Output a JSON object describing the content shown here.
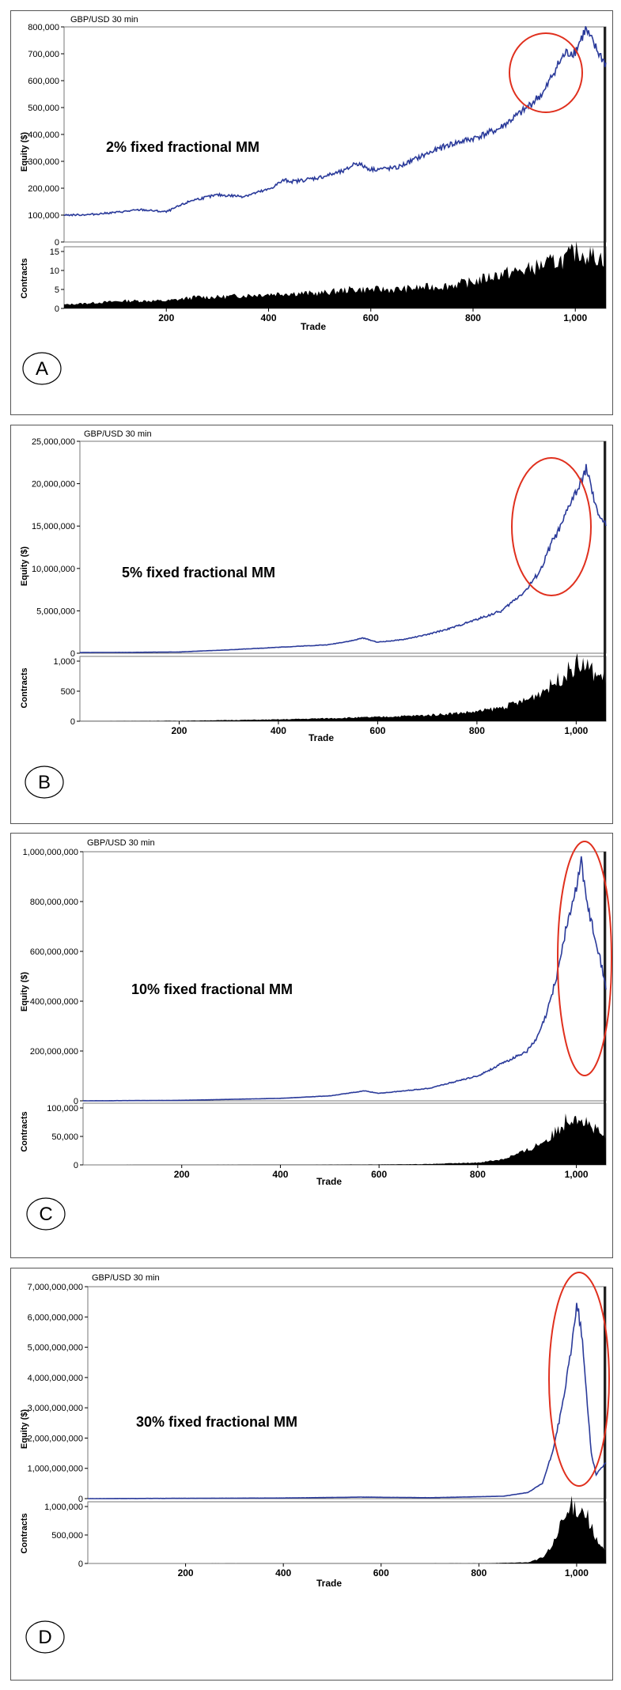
{
  "chart_data": [
    {
      "type": "line",
      "panel_label": "A",
      "title": "GBP/USD 30 min",
      "annotation": "2% fixed fractional MM",
      "xlabel": "Trade",
      "xticks": [
        "200",
        "400",
        "600",
        "800",
        "1,000"
      ],
      "xlim": [
        0,
        1060
      ],
      "equity": {
        "ylabel": "Equity ($)",
        "ylim": [
          0,
          800000
        ],
        "yticks": [
          "0",
          "100,000",
          "200,000",
          "300,000",
          "400,000",
          "500,000",
          "600,000",
          "700,000",
          "800,000"
        ],
        "x": [
          0,
          50,
          100,
          150,
          200,
          250,
          300,
          350,
          400,
          430,
          450,
          500,
          550,
          570,
          600,
          650,
          700,
          750,
          800,
          850,
          900,
          940,
          960,
          980,
          1000,
          1020,
          1040,
          1060
        ],
        "values": [
          100000,
          102000,
          110000,
          120000,
          112000,
          155000,
          175000,
          170000,
          195000,
          230000,
          225000,
          240000,
          265000,
          295000,
          270000,
          275000,
          320000,
          360000,
          385000,
          420000,
          490000,
          560000,
          640000,
          700000,
          710000,
          790000,
          720000,
          660000
        ]
      },
      "contracts": {
        "ylabel": "Contracts",
        "ylim": [
          0,
          15
        ],
        "yticks": [
          "0",
          "5",
          "10",
          "15"
        ],
        "x": [
          0,
          120,
          200,
          260,
          300,
          430,
          500,
          560,
          650,
          750,
          800,
          850,
          900,
          950,
          980,
          1000,
          1030,
          1060
        ],
        "values": [
          1,
          2,
          2,
          3,
          3,
          4,
          4,
          5,
          5,
          6,
          7,
          9,
          10,
          12,
          13,
          15,
          14,
          13
        ]
      }
    },
    {
      "type": "line",
      "panel_label": "B",
      "title": "GBP/USD 30 min",
      "annotation": "5% fixed fractional MM",
      "xlabel": "Trade",
      "xticks": [
        "200",
        "400",
        "600",
        "800",
        "1,000"
      ],
      "xlim": [
        0,
        1060
      ],
      "equity": {
        "ylabel": "Equity ($)",
        "ylim": [
          0,
          25000000
        ],
        "yticks": [
          "0",
          "5,000,000",
          "10,000,000",
          "15,000,000",
          "20,000,000",
          "25,000,000"
        ],
        "x": [
          0,
          100,
          200,
          300,
          400,
          500,
          550,
          570,
          600,
          650,
          700,
          750,
          800,
          850,
          900,
          930,
          950,
          970,
          990,
          1010,
          1020,
          1040,
          1060
        ],
        "values": [
          80000,
          100000,
          150000,
          400000,
          700000,
          1000000,
          1500000,
          1800000,
          1300000,
          1600000,
          2200000,
          3000000,
          4000000,
          5000000,
          7500000,
          10000000,
          13000000,
          15000000,
          18000000,
          20000000,
          22000000,
          17000000,
          15000000
        ]
      },
      "contracts": {
        "ylabel": "Contracts",
        "ylim": [
          0,
          1000
        ],
        "yticks": [
          "0",
          "500",
          "1,000"
        ],
        "x": [
          0,
          200,
          400,
          600,
          700,
          800,
          850,
          900,
          950,
          980,
          1000,
          1020,
          1040,
          1060
        ],
        "values": [
          3,
          8,
          30,
          70,
          100,
          160,
          230,
          350,
          600,
          800,
          950,
          920,
          780,
          700
        ]
      }
    },
    {
      "type": "line",
      "panel_label": "C",
      "title": "GBP/USD 30 min",
      "annotation": "10% fixed fractional MM",
      "xlabel": "Trade",
      "xticks": [
        "200",
        "400",
        "600",
        "800",
        "1,000"
      ],
      "xlim": [
        0,
        1060
      ],
      "equity": {
        "ylabel": "Equity ($)",
        "ylim": [
          0,
          1000000000
        ],
        "yticks": [
          "0",
          "200,000,000",
          "400,000,000",
          "600,000,000",
          "800,000,000",
          "1,000,000,000"
        ],
        "x": [
          0,
          200,
          400,
          500,
          570,
          600,
          700,
          800,
          850,
          900,
          920,
          940,
          960,
          980,
          1000,
          1010,
          1020,
          1040,
          1060
        ],
        "values": [
          0,
          2000000,
          10000000,
          20000000,
          40000000,
          30000000,
          50000000,
          100000000,
          150000000,
          200000000,
          250000000,
          350000000,
          500000000,
          700000000,
          850000000,
          980000000,
          800000000,
          650000000,
          450000000
        ]
      },
      "contracts": {
        "ylabel": "Contracts",
        "ylim": [
          0,
          100000
        ],
        "yticks": [
          "0",
          "50,000",
          "100,000"
        ],
        "x": [
          0,
          400,
          600,
          700,
          800,
          850,
          900,
          950,
          980,
          1000,
          1020,
          1040,
          1060
        ],
        "values": [
          0,
          300,
          800,
          1500,
          4000,
          10000,
          25000,
          50000,
          80000,
          90000,
          75000,
          60000,
          45000
        ]
      }
    },
    {
      "type": "line",
      "panel_label": "D",
      "title": "GBP/USD 30 min",
      "annotation": "30% fixed fractional MM",
      "xlabel": "Trade",
      "xticks": [
        "200",
        "400",
        "600",
        "800",
        "1,000"
      ],
      "xlim": [
        0,
        1060
      ],
      "equity": {
        "ylabel": "Equity ($)",
        "ylim": [
          0,
          7000000000
        ],
        "yticks": [
          "0",
          "1,000,000,000",
          "2,000,000,000",
          "3,000,000,000",
          "4,000,000,000",
          "5,000,000,000",
          "6,000,000,000",
          "7,000,000,000"
        ],
        "x": [
          0,
          400,
          560,
          700,
          850,
          900,
          930,
          950,
          970,
          990,
          1000,
          1010,
          1020,
          1030,
          1040,
          1060
        ],
        "values": [
          0,
          20000000,
          50000000,
          30000000,
          80000000,
          200000000,
          500000000,
          1500000000,
          3000000000,
          5000000000,
          6500000000,
          5500000000,
          3500000000,
          1500000000,
          800000000,
          1200000000
        ]
      },
      "contracts": {
        "ylabel": "Contracts",
        "ylim": [
          0,
          1000000
        ],
        "yticks": [
          "0",
          "500,000",
          "1,000,000"
        ],
        "x": [
          0,
          800,
          900,
          930,
          950,
          970,
          990,
          1000,
          1020,
          1040,
          1060
        ],
        "values": [
          0,
          2000,
          20000,
          100000,
          300000,
          700000,
          1000000,
          1000000,
          900000,
          400000,
          200000
        ]
      }
    }
  ]
}
